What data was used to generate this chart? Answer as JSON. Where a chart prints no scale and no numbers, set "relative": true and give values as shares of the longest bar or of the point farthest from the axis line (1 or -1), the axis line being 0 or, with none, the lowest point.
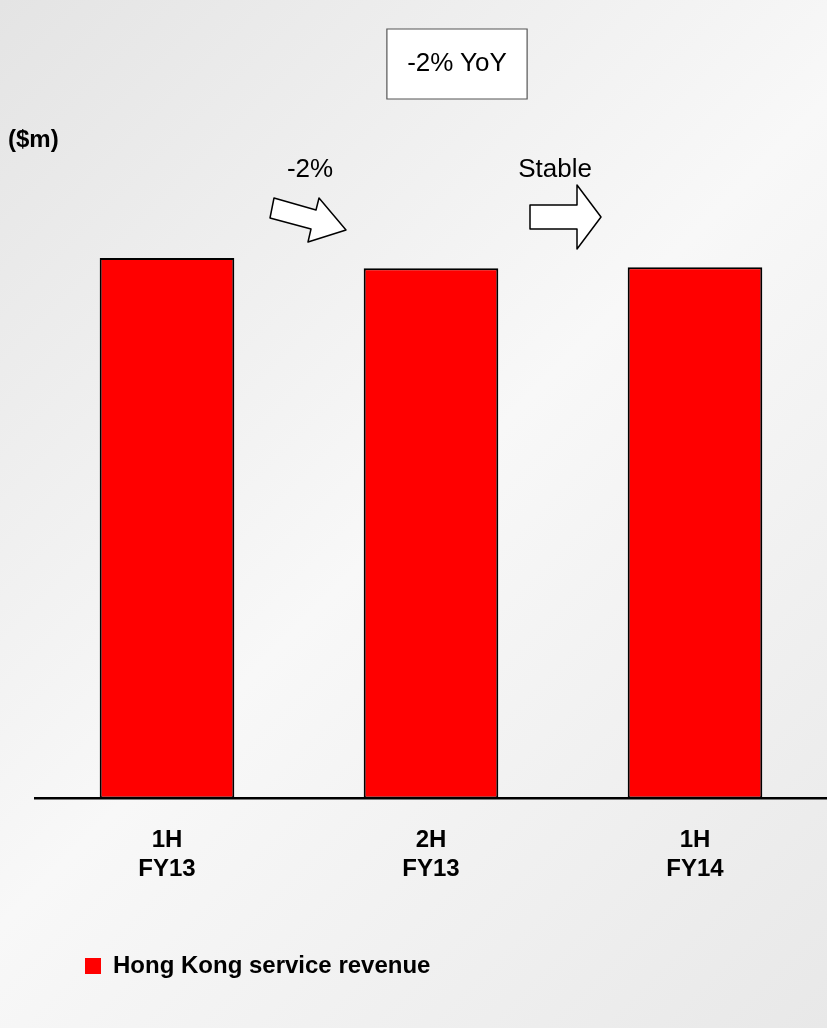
{
  "chart_data": {
    "type": "bar",
    "title": "-2% YoY",
    "ylabel": "($m)",
    "categories": [
      "1H\nFY13",
      "2H\nFY13",
      "1H\nFY14"
    ],
    "series": [
      {
        "name": "Hong Kong service revenue",
        "color": "#ff0000",
        "values": [
          1,
          0.981,
          0.983
        ]
      }
    ],
    "relative": true,
    "legend": "bottom left",
    "annotations": [
      "-2%",
      "Stable"
    ]
  }
}
